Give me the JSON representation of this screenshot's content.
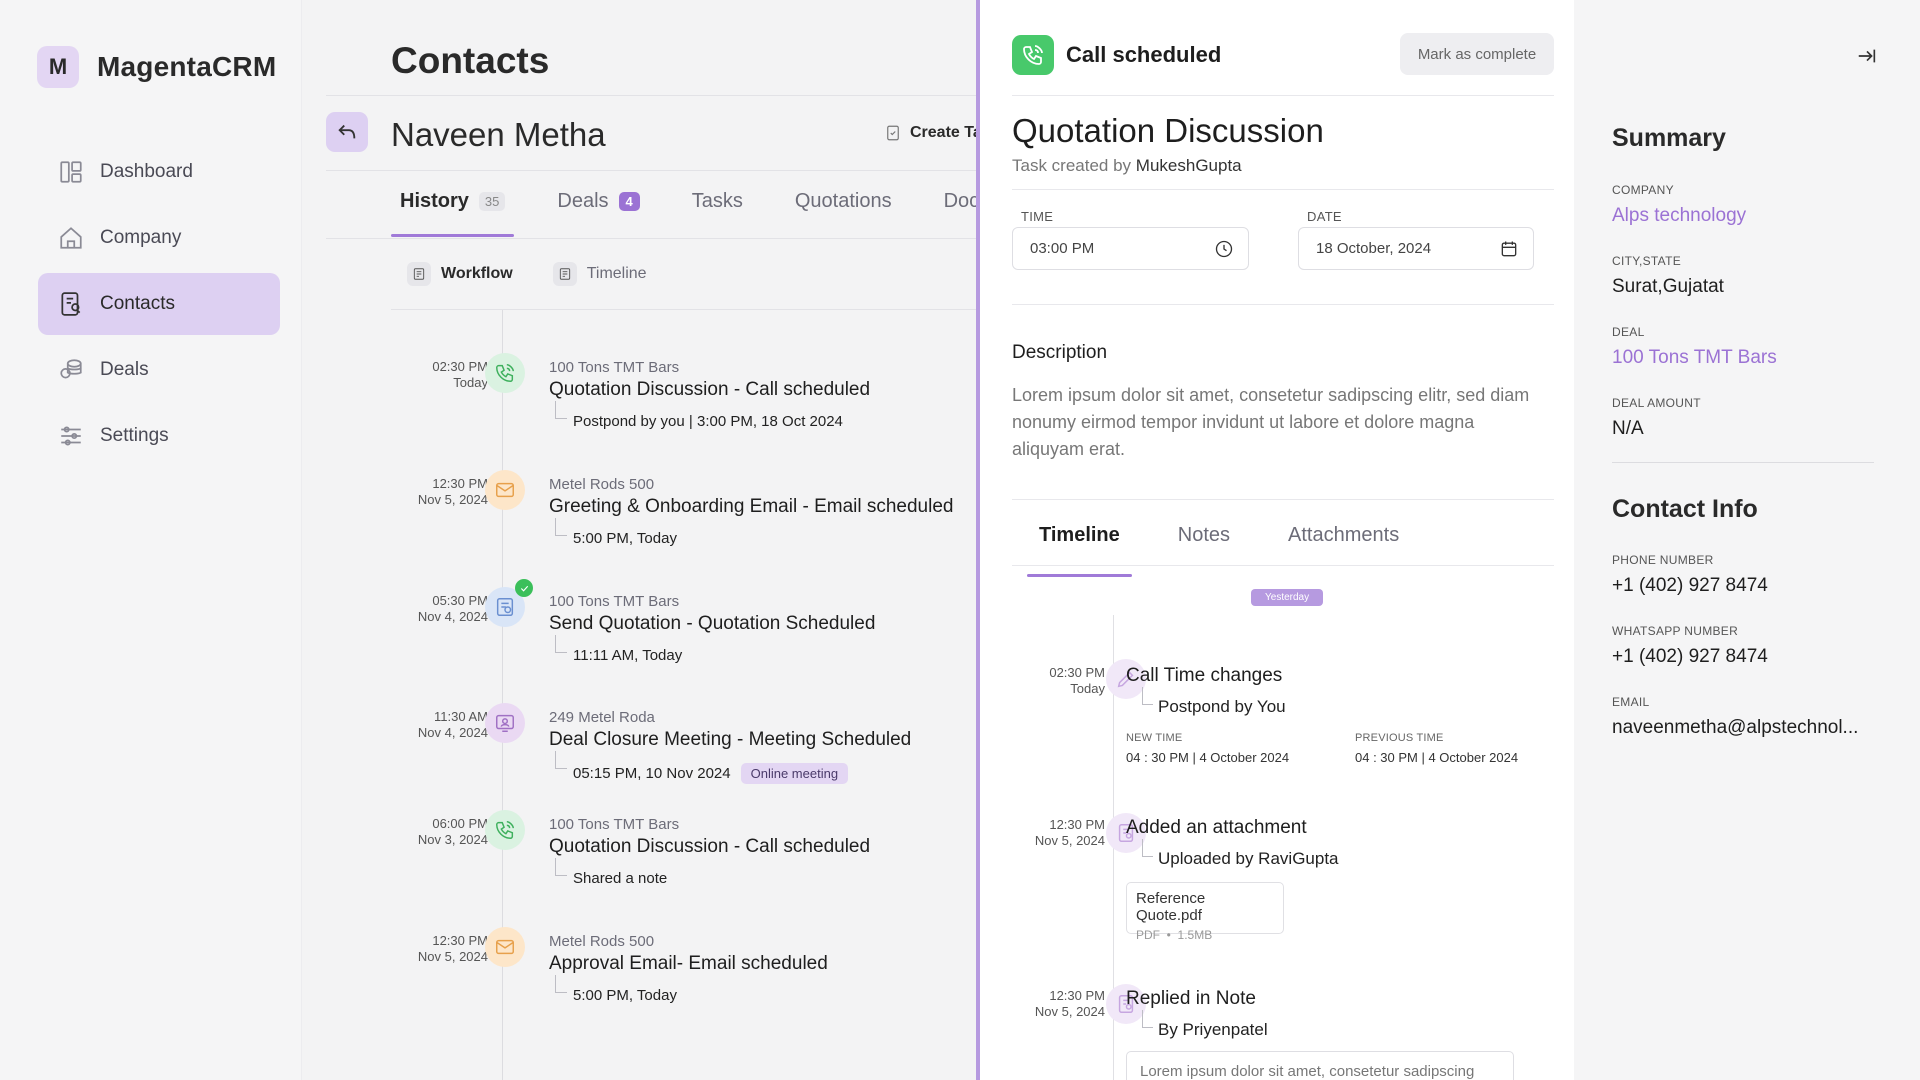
{
  "app": {
    "logo_letter": "M",
    "name": "MagentaCRM"
  },
  "sidebar": {
    "items": [
      {
        "label": "Dashboard",
        "icon": "dashboard-icon"
      },
      {
        "label": "Company",
        "icon": "home-icon"
      },
      {
        "label": "Contacts",
        "icon": "contacts-icon",
        "active": true
      },
      {
        "label": "Deals",
        "icon": "coins-icon"
      },
      {
        "label": "Settings",
        "icon": "sliders-icon"
      }
    ]
  },
  "contacts": {
    "page_title": "Contacts",
    "contact_name": "Naveen Metha",
    "create_task_label": "Create Task",
    "tabs": [
      {
        "label": "History",
        "badge": "35"
      },
      {
        "label": "Deals",
        "badge": "4"
      },
      {
        "label": "Tasks"
      },
      {
        "label": "Quotations"
      },
      {
        "label": "Documents"
      }
    ],
    "views": [
      {
        "label": "Workflow"
      },
      {
        "label": "Timeline"
      }
    ],
    "history": [
      {
        "time": "02:30 PM",
        "date": "Today",
        "sub": "100 Tons TMT Bars",
        "title": "Quotation Discussion - Call scheduled",
        "detail": "Postpond by you | 3:00 PM, 18 Oct 2024",
        "icon": "phone-icon"
      },
      {
        "time": "12:30 PM",
        "date": "Nov 5, 2024",
        "sub": "Metel Rods 500",
        "title": "Greeting & Onboarding Email - Email scheduled",
        "detail": "5:00 PM, Today",
        "icon": "mail-icon"
      },
      {
        "time": "05:30 PM",
        "date": "Nov 4, 2024",
        "sub": "100 Tons TMT Bars",
        "title": "Send Quotation - Quotation Scheduled",
        "detail": "11:11 AM, Today",
        "icon": "quotation-icon"
      },
      {
        "time": "11:30 AM",
        "date": "Nov 4, 2024",
        "sub": "249 Metel Roda",
        "title": "Deal Closure Meeting - Meeting Scheduled",
        "detail": "05:15 PM, 10 Nov 2024",
        "pill": "Online meeting",
        "icon": "meeting-icon"
      },
      {
        "time": "06:00 PM",
        "date": "Nov 3, 2024",
        "sub": "100 Tons TMT Bars",
        "title": "Quotation Discussion - Call scheduled",
        "detail": "Shared a note",
        "icon": "phone-icon"
      },
      {
        "time": "12:30 PM",
        "date": "Nov 5, 2024",
        "sub": "Metel Rods 500",
        "title": "Approval Email- Email scheduled",
        "detail": "5:00 PM, Today",
        "icon": "mail-icon"
      }
    ]
  },
  "task": {
    "header_title": "Call scheduled",
    "mark_complete_label": "Mark as complete",
    "title": "Quotation Discussion",
    "created_prefix": "Task created by",
    "created_by": "MukeshGupta",
    "time_label": "TIME",
    "time_value": "03:00 PM",
    "date_label": "DATE",
    "date_value": "18 October, 2024",
    "description_heading": "Description",
    "description": "Lorem ipsum dolor sit amet, consetetur sadipscing elitr, sed diam nonumy eirmod tempor invidunt ut labore et dolore magna aliquyam erat.",
    "tabs": [
      {
        "label": "Timeline"
      },
      {
        "label": "Notes"
      },
      {
        "label": "Attachments"
      }
    ],
    "day_marker": "Yesterday",
    "timeline": [
      {
        "time": "02:30 PM",
        "date": "Today",
        "title": "Call Time changes",
        "detail": "Postpond by You",
        "new_time_label": "NEW TIME",
        "new_time": "04 : 30 PM | 4 October 2024",
        "prev_time_label": "PREVIOUS TIME",
        "prev_time": "04 : 30 PM | 4 October 2024"
      },
      {
        "time": "12:30 PM",
        "date": "Nov 5, 2024",
        "title": "Added an attachment",
        "detail": "Uploaded by RaviGupta",
        "file_name": "Reference Quote.pdf",
        "file_type": "PDF",
        "file_size": "1.5MB"
      },
      {
        "time": "12:30 PM",
        "date": "Nov 5, 2024",
        "title": "Replied in Note",
        "detail": "By Priyenpatel",
        "note": "Lorem ipsum dolor sit amet, consetetur sadipscing"
      }
    ]
  },
  "summary": {
    "heading": "Summary",
    "company_label": "COMPANY",
    "company": "Alps technology",
    "city_label": "CITY,STATE",
    "city": "Surat,Gujatat",
    "deal_label": "DEAL",
    "deal": "100 Tons TMT Bars",
    "amount_label": "DEAL AMOUNT",
    "amount": "N/A",
    "contact_heading": "Contact Info",
    "phone_label": "PHONE NUMBER",
    "phone": "+1 (402) 927 8474",
    "whatsapp_label": "WHATSAPP NUMBER",
    "whatsapp": "+1 (402) 927 8474",
    "email_label": "EMAIL",
    "email": "naveenmetha@alpstechnol..."
  },
  "colors": {
    "accent": "#9b72d4",
    "accent_light": "#ddd0f2",
    "success": "#48c96b"
  }
}
